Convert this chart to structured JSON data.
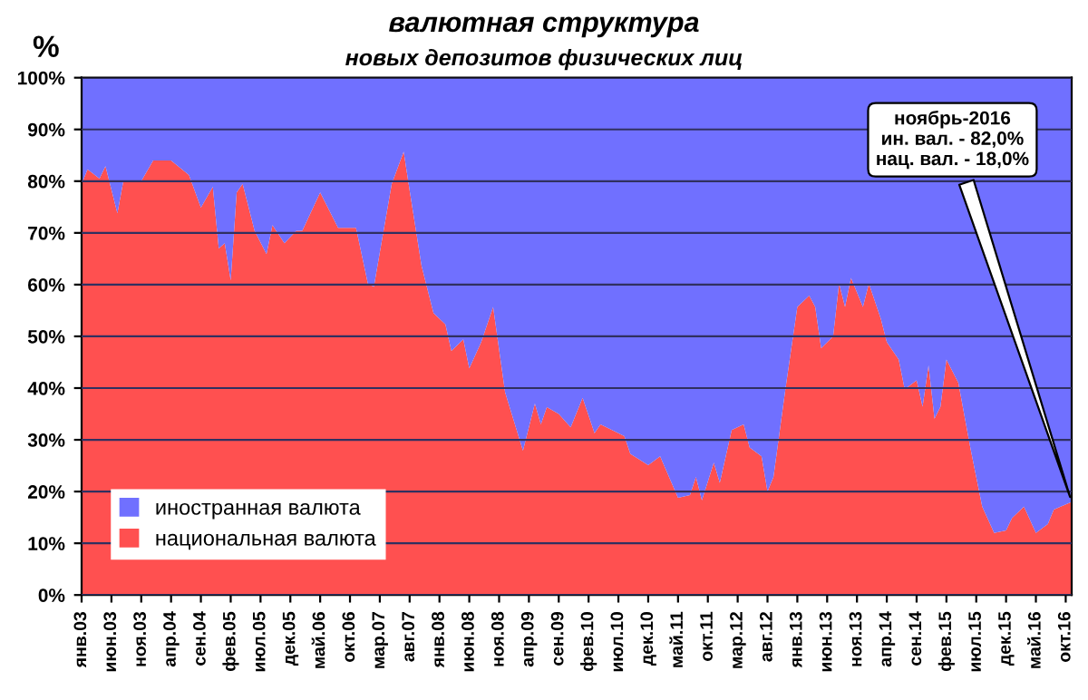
{
  "chart_data": {
    "type": "area",
    "stacked": true,
    "title": "валютная структура",
    "subtitle": "новых депозитов физических лиц",
    "ylabel": "%",
    "x": [
      "2003-01",
      "2003-02",
      "2003-04",
      "2003-05",
      "2003-07",
      "2003-08",
      "2003-11",
      "2004-01",
      "2004-04",
      "2004-07",
      "2004-09",
      "2004-11",
      "2004-12",
      "2005-01",
      "2005-02",
      "2005-03",
      "2005-04",
      "2005-06",
      "2005-08",
      "2005-09",
      "2005-11",
      "2006-01",
      "2006-02",
      "2006-05",
      "2006-08",
      "2006-11",
      "2007-01",
      "2007-02",
      "2007-05",
      "2007-07",
      "2007-08",
      "2007-10",
      "2007-12",
      "2008-02",
      "2008-03",
      "2008-05",
      "2008-06",
      "2008-08",
      "2008-10",
      "2008-12",
      "2009-03",
      "2009-05",
      "2009-06",
      "2009-07",
      "2009-09",
      "2009-11",
      "2010-01",
      "2010-03",
      "2010-04",
      "2010-08",
      "2010-09",
      "2010-12",
      "2011-02",
      "2011-05",
      "2011-07",
      "2011-08",
      "2011-09",
      "2011-11",
      "2011-12",
      "2012-02",
      "2012-04",
      "2012-05",
      "2012-07",
      "2012-08",
      "2012-09",
      "2012-11",
      "2013-01",
      "2013-03",
      "2013-04",
      "2013-05",
      "2013-07",
      "2013-08",
      "2013-09",
      "2013-10",
      "2013-12",
      "2014-01",
      "2014-03",
      "2014-04",
      "2014-06",
      "2014-07",
      "2014-09",
      "2014-10",
      "2014-11",
      "2014-12",
      "2015-01",
      "2015-02",
      "2015-04",
      "2015-06",
      "2015-08",
      "2015-10",
      "2015-12",
      "2016-01",
      "2016-03",
      "2016-05",
      "2016-07",
      "2016-08",
      "2016-11"
    ],
    "series": [
      {
        "name": "национальная валюта",
        "color": "#ff5050",
        "values": [
          79.5,
          82.3,
          80.5,
          82.9,
          73.8,
          80.0,
          80.0,
          84.0,
          84.0,
          81.2,
          74.9,
          78.9,
          67.0,
          68.0,
          60.8,
          77.8,
          79.5,
          70.4,
          65.9,
          71.5,
          68.0,
          70.4,
          70.4,
          77.8,
          71.0,
          71.0,
          60.2,
          59.6,
          79.5,
          85.7,
          78.2,
          63.6,
          54.5,
          52.3,
          47.2,
          49.4,
          43.8,
          48.9,
          55.7,
          39.2,
          27.9,
          37.0,
          33.0,
          36.3,
          35.0,
          32.4,
          38.1,
          31.3,
          33.0,
          30.7,
          27.3,
          25.1,
          26.8,
          18.8,
          19.3,
          22.8,
          18.3,
          25.6,
          21.7,
          31.9,
          33.0,
          28.5,
          26.8,
          20.0,
          22.8,
          39.8,
          55.7,
          57.9,
          55.7,
          47.7,
          50.0,
          60.2,
          55.7,
          61.3,
          55.7,
          60.2,
          53.4,
          48.9,
          45.5,
          39.8,
          41.5,
          36.4,
          44.4,
          34.1,
          36.4,
          45.5,
          41.0,
          28.5,
          17.1,
          12.0,
          12.5,
          14.9,
          17.1,
          12.0,
          13.7,
          16.5,
          18.0
        ]
      },
      {
        "name": "иностранная валюта",
        "color": "#7070ff",
        "values": [
          20.5,
          17.7,
          19.5,
          17.1,
          26.2,
          20.0,
          20.0,
          16.0,
          16.0,
          18.8,
          25.1,
          21.1,
          33.0,
          32.0,
          39.2,
          22.2,
          20.5,
          29.6,
          34.1,
          28.5,
          32.0,
          29.6,
          29.6,
          22.2,
          29.0,
          29.0,
          39.8,
          40.4,
          20.5,
          14.3,
          21.8,
          36.4,
          45.5,
          47.7,
          52.8,
          50.6,
          56.2,
          51.1,
          44.3,
          60.8,
          72.1,
          63.0,
          67.0,
          63.7,
          65.0,
          67.6,
          61.9,
          68.7,
          67.0,
          69.3,
          72.7,
          74.9,
          73.2,
          81.2,
          80.7,
          77.2,
          81.7,
          74.4,
          78.3,
          68.1,
          67.0,
          71.5,
          73.2,
          80.0,
          77.2,
          60.2,
          44.3,
          42.1,
          44.3,
          52.3,
          50.0,
          39.8,
          44.3,
          38.7,
          44.3,
          39.8,
          46.6,
          51.1,
          54.5,
          60.2,
          58.5,
          63.6,
          55.6,
          65.9,
          63.6,
          54.5,
          59.0,
          71.5,
          82.9,
          88.0,
          87.5,
          85.1,
          82.9,
          88.0,
          86.3,
          83.5,
          82.0
        ]
      }
    ],
    "xlim": [
      "2003-01",
      "2016-11"
    ],
    "xticks": [
      {
        "value": "2003-01",
        "label": "янв.03"
      },
      {
        "value": "2003-06",
        "label": "июн.03"
      },
      {
        "value": "2003-11",
        "label": "ноя.03"
      },
      {
        "value": "2004-04",
        "label": "апр.04"
      },
      {
        "value": "2004-09",
        "label": "сен.04"
      },
      {
        "value": "2005-02",
        "label": "фев.05"
      },
      {
        "value": "2005-07",
        "label": "июл.05"
      },
      {
        "value": "2005-12",
        "label": "дек.05"
      },
      {
        "value": "2006-05",
        "label": "май.06"
      },
      {
        "value": "2006-10",
        "label": "окт.06"
      },
      {
        "value": "2007-03",
        "label": "мар.07"
      },
      {
        "value": "2007-08",
        "label": "авг.07"
      },
      {
        "value": "2008-01",
        "label": "янв.08"
      },
      {
        "value": "2008-06",
        "label": "июн.08"
      },
      {
        "value": "2008-11",
        "label": "ноя.08"
      },
      {
        "value": "2009-04",
        "label": "апр.09"
      },
      {
        "value": "2009-09",
        "label": "сен.09"
      },
      {
        "value": "2010-02",
        "label": "фев.10"
      },
      {
        "value": "2010-07",
        "label": "июл.10"
      },
      {
        "value": "2010-12",
        "label": "дек.10"
      },
      {
        "value": "2011-05",
        "label": "май.11"
      },
      {
        "value": "2011-10",
        "label": "окт.11"
      },
      {
        "value": "2012-03",
        "label": "мар.12"
      },
      {
        "value": "2012-08",
        "label": "авг.12"
      },
      {
        "value": "2013-01",
        "label": "янв.13"
      },
      {
        "value": "2013-06",
        "label": "июн.13"
      },
      {
        "value": "2013-11",
        "label": "ноя.13"
      },
      {
        "value": "2014-04",
        "label": "апр.14"
      },
      {
        "value": "2014-09",
        "label": "сен.14"
      },
      {
        "value": "2015-02",
        "label": "фев.15"
      },
      {
        "value": "2015-07",
        "label": "июл.15"
      },
      {
        "value": "2015-12",
        "label": "дек.15"
      },
      {
        "value": "2016-05",
        "label": "май.16"
      },
      {
        "value": "2016-10",
        "label": "окт.16"
      }
    ],
    "ylim": [
      0,
      100
    ],
    "yticks": [
      {
        "value": 0,
        "label": "0%"
      },
      {
        "value": 10,
        "label": "10%"
      },
      {
        "value": 20,
        "label": "20%"
      },
      {
        "value": 30,
        "label": "30%"
      },
      {
        "value": 40,
        "label": "40%"
      },
      {
        "value": 50,
        "label": "50%"
      },
      {
        "value": 60,
        "label": "60%"
      },
      {
        "value": 70,
        "label": "70%"
      },
      {
        "value": 80,
        "label": "80%"
      },
      {
        "value": 90,
        "label": "90%"
      },
      {
        "value": 100,
        "label": "100%"
      }
    ],
    "grid": "y",
    "legend": "bottom left",
    "annotations": [
      {
        "text": "ноябрь-2016\nин. вал. - 82,0%\nнац. вал. - 18,0%",
        "x": "2016-11",
        "y": 18.0
      }
    ]
  }
}
